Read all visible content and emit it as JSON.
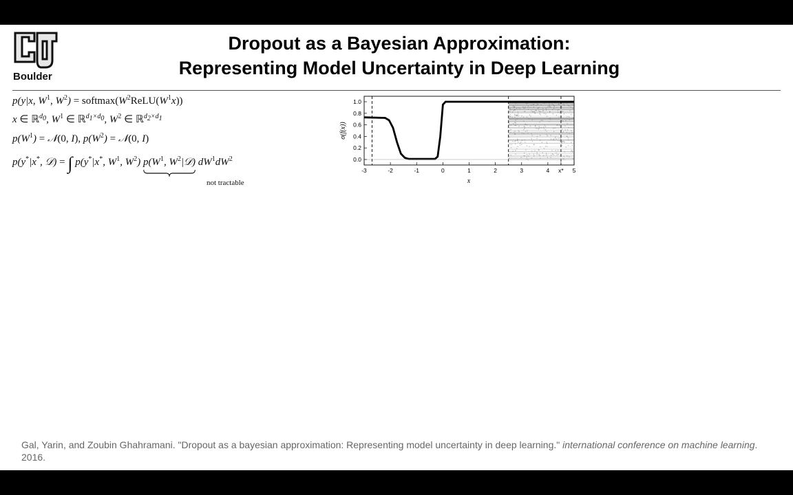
{
  "header": {
    "logo_text": "Boulder",
    "title_line1": "Dropout as a Bayesian Approximation:",
    "title_line2": "Representing Model Uncertainty in Deep Learning"
  },
  "equations": {
    "underbrace_label": "not tractable"
  },
  "chart_data": {
    "type": "line",
    "title": "",
    "xlabel": "x",
    "ylabel": "σ(f(x))",
    "xlim": [
      -3,
      5
    ],
    "ylim": [
      0.0,
      1.0
    ],
    "x_ticks": [
      "-3",
      "-2",
      "-1",
      "0",
      "1",
      "2",
      "3",
      "4",
      "x*",
      "5"
    ],
    "x_tick_values": [
      -3,
      -2,
      -1,
      0,
      1,
      2,
      3,
      4,
      4.5,
      5
    ],
    "y_ticks": [
      "0.0",
      "0.2",
      "0.4",
      "0.6",
      "0.8",
      "1.0"
    ],
    "y_tick_values": [
      0.0,
      0.2,
      0.4,
      0.6,
      0.8,
      1.0
    ],
    "dashed_vlines": [
      -2.7,
      2.5,
      4.5
    ],
    "shaded_region": [
      2.5,
      5
    ],
    "series": [
      {
        "x": [
          -3,
          -2.2,
          -2.05,
          -1.9,
          -1.75,
          -1.6,
          -1.45,
          -1.3,
          -0.3,
          -0.2,
          -0.1,
          0.0,
          0.1,
          5
        ],
        "values": [
          0.73,
          0.72,
          0.68,
          0.55,
          0.3,
          0.1,
          0.03,
          0.01,
          0.01,
          0.05,
          0.4,
          0.95,
          1.0,
          1.0
        ]
      }
    ],
    "grid": false
  },
  "footer": {
    "citation_main": "Gal, Yarin, and Zoubin Ghahramani. \"Dropout as a bayesian approximation: Representing model uncertainty in deep learning.\" ",
    "citation_venue": "international conference on machine learning",
    "citation_year": ". 2016."
  }
}
